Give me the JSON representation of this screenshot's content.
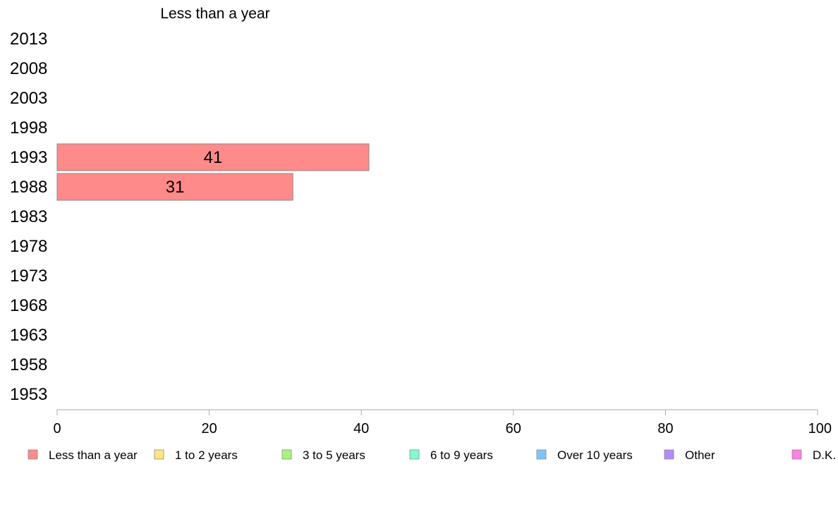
{
  "chart_data": {
    "type": "bar",
    "orientation": "horizontal",
    "title": "Less than a year",
    "xlabel": "",
    "ylabel": "",
    "categories": [
      "2013",
      "2008",
      "2003",
      "1998",
      "1993",
      "1988",
      "1983",
      "1978",
      "1973",
      "1968",
      "1963",
      "1958",
      "1953"
    ],
    "series": [
      {
        "name": "Less than a year",
        "color": "#ff8a8a",
        "values": [
          null,
          null,
          null,
          null,
          41,
          31,
          null,
          null,
          null,
          null,
          null,
          null,
          null
        ]
      }
    ],
    "data_labels": [
      null,
      null,
      null,
      null,
      "41",
      "31",
      null,
      null,
      null,
      null,
      null,
      null,
      null
    ],
    "xlim": [
      0,
      100
    ],
    "xticks": [
      0,
      20,
      40,
      60,
      80,
      100
    ],
    "grid": false,
    "legend_position": "bottom",
    "legend": [
      {
        "label": "Less than a year",
        "color": "#ff8a8a"
      },
      {
        "label": "1 to 2 years",
        "color": "#ffe680"
      },
      {
        "label": "3 to 5 years",
        "color": "#a6f57a"
      },
      {
        "label": "6 to 9 years",
        "color": "#80ffcc"
      },
      {
        "label": "Over 10 years",
        "color": "#80c4ff"
      },
      {
        "label": "Other",
        "color": "#b38aff"
      },
      {
        "label": "D.K.",
        "color": "#ff80e6"
      }
    ]
  }
}
